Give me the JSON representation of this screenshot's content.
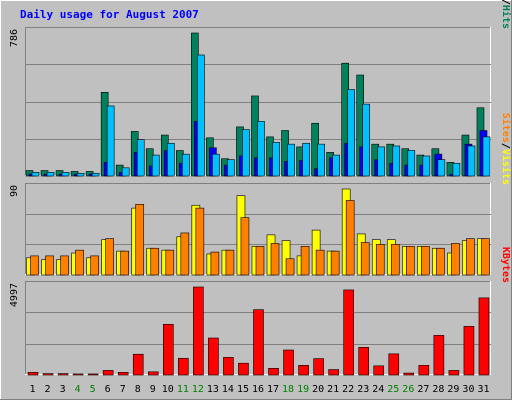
{
  "title": "Daily usage for August 2007",
  "colors": {
    "background": "#c0c0c0",
    "hits": "#00805c",
    "files": "#0000ff",
    "pages": "#00c0ff",
    "visits": "#ffff00",
    "sites": "#ff8000",
    "kbytes": "#ff0000",
    "title": "#0000ff"
  },
  "chart_data": [
    {
      "type": "bar",
      "panel": "hits-files-pages",
      "categories": [
        "1",
        "2",
        "3",
        "4",
        "5",
        "6",
        "7",
        "8",
        "9",
        "10",
        "11",
        "12",
        "13",
        "14",
        "15",
        "16",
        "17",
        "18",
        "19",
        "20",
        "21",
        "22",
        "23",
        "24",
        "25",
        "26",
        "27",
        "28",
        "29",
        "30",
        "31"
      ],
      "ymax_label": "786",
      "ylim": [
        0,
        786
      ],
      "legend": [
        "Pages",
        "/",
        "Files",
        "/",
        "Hits"
      ],
      "series": [
        {
          "name": "Hits",
          "values": [
            30,
            30,
            30,
            25,
            25,
            460,
            60,
            245,
            150,
            225,
            140,
            786,
            210,
            95,
            270,
            440,
            215,
            250,
            160,
            290,
            130,
            620,
            555,
            175,
            175,
            150,
            115,
            150,
            75,
            225,
            375
          ]
        },
        {
          "name": "Files",
          "values": [
            10,
            10,
            10,
            10,
            10,
            75,
            20,
            130,
            55,
            140,
            70,
            300,
            155,
            60,
            110,
            100,
            100,
            80,
            85,
            40,
            100,
            180,
            160,
            90,
            70,
            60,
            60,
            120,
            10,
            175,
            250
          ]
        },
        {
          "name": "Pages",
          "values": [
            20,
            20,
            20,
            15,
            15,
            385,
            45,
            200,
            115,
            180,
            120,
            665,
            120,
            90,
            255,
            300,
            185,
            175,
            180,
            175,
            115,
            475,
            395,
            160,
            165,
            140,
            110,
            90,
            70,
            165,
            215
          ]
        }
      ]
    },
    {
      "type": "bar",
      "panel": "visits-sites",
      "categories": [
        "1",
        "2",
        "3",
        "4",
        "5",
        "6",
        "7",
        "8",
        "9",
        "10",
        "11",
        "12",
        "13",
        "14",
        "15",
        "16",
        "17",
        "18",
        "19",
        "20",
        "21",
        "22",
        "23",
        "24",
        "25",
        "26",
        "27",
        "28",
        "29",
        "30",
        "31"
      ],
      "ymax_label": "90",
      "ylim": [
        0,
        90
      ],
      "legend": [
        "Sites",
        "/",
        "Visits"
      ],
      "series": [
        {
          "name": "Visits",
          "values": [
            18,
            16,
            16,
            23,
            18,
            37,
            25,
            70,
            28,
            26,
            40,
            73,
            22,
            26,
            83,
            30,
            42,
            36,
            20,
            47,
            25,
            90,
            43,
            37,
            37,
            30,
            30,
            28,
            23,
            36,
            38
          ]
        },
        {
          "name": "Sites",
          "values": [
            20,
            20,
            20,
            26,
            20,
            38,
            25,
            74,
            28,
            26,
            44,
            70,
            24,
            26,
            60,
            30,
            33,
            17,
            30,
            26,
            25,
            78,
            34,
            32,
            32,
            30,
            30,
            28,
            33,
            38,
            38
          ]
        }
      ]
    },
    {
      "type": "bar",
      "panel": "kbytes",
      "categories": [
        "1",
        "2",
        "3",
        "4",
        "5",
        "6",
        "7",
        "8",
        "9",
        "10",
        "11",
        "12",
        "13",
        "14",
        "15",
        "16",
        "17",
        "18",
        "19",
        "20",
        "21",
        "22",
        "23",
        "24",
        "25",
        "26",
        "27",
        "28",
        "29",
        "30",
        "31"
      ],
      "ymax_label": "4997",
      "ylim": [
        0,
        4997
      ],
      "legend": [
        "KBytes"
      ],
      "series": [
        {
          "name": "KBytes",
          "values": [
            150,
            80,
            80,
            60,
            60,
            260,
            150,
            1180,
            180,
            2880,
            950,
            4997,
            2100,
            1000,
            670,
            3710,
            380,
            1420,
            550,
            930,
            310,
            4830,
            1570,
            520,
            1200,
            110,
            550,
            2250,
            260,
            2760,
            4380
          ]
        }
      ]
    }
  ],
  "x_labels": [
    {
      "text": "1",
      "color": "#000000"
    },
    {
      "text": "2",
      "color": "#000000"
    },
    {
      "text": "3",
      "color": "#000000"
    },
    {
      "text": "4",
      "color": "#008000"
    },
    {
      "text": "5",
      "color": "#008000"
    },
    {
      "text": "6",
      "color": "#000000"
    },
    {
      "text": "7",
      "color": "#000000"
    },
    {
      "text": "8",
      "color": "#000000"
    },
    {
      "text": "9",
      "color": "#000000"
    },
    {
      "text": "10",
      "color": "#000000"
    },
    {
      "text": "11",
      "color": "#008000"
    },
    {
      "text": "12",
      "color": "#008000"
    },
    {
      "text": "13",
      "color": "#000000"
    },
    {
      "text": "14",
      "color": "#000000"
    },
    {
      "text": "15",
      "color": "#000000"
    },
    {
      "text": "16",
      "color": "#000000"
    },
    {
      "text": "17",
      "color": "#000000"
    },
    {
      "text": "18",
      "color": "#008000"
    },
    {
      "text": "19",
      "color": "#008000"
    },
    {
      "text": "20",
      "color": "#000000"
    },
    {
      "text": "21",
      "color": "#000000"
    },
    {
      "text": "22",
      "color": "#000000"
    },
    {
      "text": "23",
      "color": "#000000"
    },
    {
      "text": "24",
      "color": "#000000"
    },
    {
      "text": "25",
      "color": "#008000"
    },
    {
      "text": "26",
      "color": "#008000"
    },
    {
      "text": "27",
      "color": "#000000"
    },
    {
      "text": "28",
      "color": "#000000"
    },
    {
      "text": "29",
      "color": "#000000"
    },
    {
      "text": "30",
      "color": "#000000"
    },
    {
      "text": "31",
      "color": "#000000"
    }
  ]
}
